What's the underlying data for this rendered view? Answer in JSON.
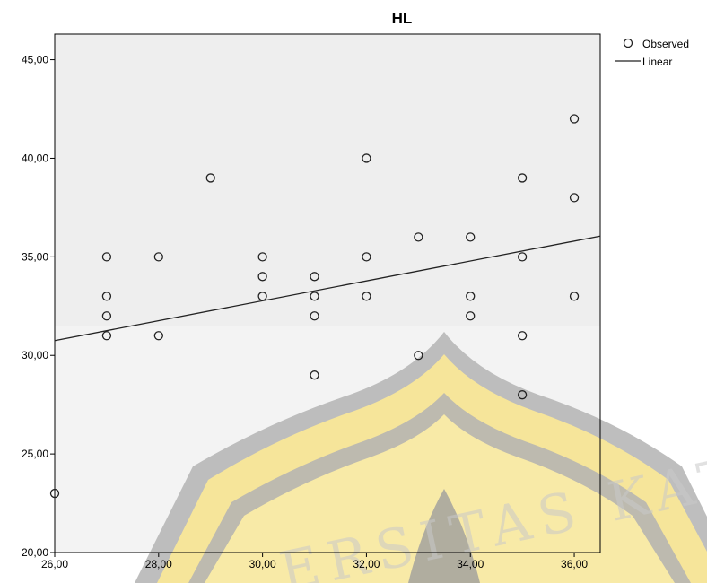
{
  "chart_data": {
    "type": "scatter",
    "title": "HL",
    "xlabel": "",
    "ylabel": "",
    "xlim": [
      26,
      36.5
    ],
    "ylim": [
      20,
      46.3
    ],
    "x_ticks": [
      "26,00",
      "28,00",
      "30,00",
      "32,00",
      "34,00",
      "36,00"
    ],
    "x_tick_values": [
      26,
      28,
      30,
      32,
      34,
      36
    ],
    "y_ticks": [
      "20,00",
      "25,00",
      "30,00",
      "35,00",
      "40,00",
      "45,00"
    ],
    "y_tick_values": [
      20,
      25,
      30,
      35,
      40,
      45
    ],
    "grid": false,
    "legend_position": "top-right",
    "legend": {
      "observed": "Observed",
      "linear": "Linear"
    },
    "series": [
      {
        "name": "Observed",
        "kind": "points",
        "points": [
          [
            26,
            23
          ],
          [
            27,
            35
          ],
          [
            27,
            33
          ],
          [
            27,
            32
          ],
          [
            27,
            31
          ],
          [
            28,
            35
          ],
          [
            28,
            31
          ],
          [
            29,
            39
          ],
          [
            30,
            35
          ],
          [
            30,
            34
          ],
          [
            30,
            33
          ],
          [
            31,
            34
          ],
          [
            31,
            33
          ],
          [
            31,
            32
          ],
          [
            31,
            29
          ],
          [
            32,
            40
          ],
          [
            32,
            35
          ],
          [
            32,
            33
          ],
          [
            33,
            36
          ],
          [
            33,
            30
          ],
          [
            34,
            36
          ],
          [
            34,
            33
          ],
          [
            34,
            32
          ],
          [
            35,
            39
          ],
          [
            35,
            35
          ],
          [
            35,
            31
          ],
          [
            35,
            28
          ],
          [
            36,
            42
          ],
          [
            36,
            38
          ],
          [
            36,
            33
          ]
        ]
      },
      {
        "name": "Linear",
        "kind": "line",
        "points": [
          [
            26,
            30.75
          ],
          [
            36.5,
            36.05
          ]
        ]
      }
    ]
  },
  "watermark": {
    "text": "ERSITAS KATO",
    "emblem_color": "#f6e59a",
    "ring_color": "#a6a6a6"
  }
}
